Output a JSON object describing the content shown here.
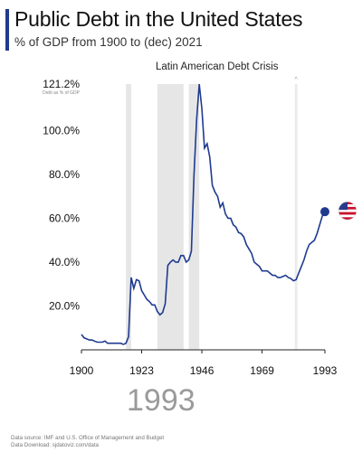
{
  "header": {
    "title": "Public Debt in the United States",
    "subtitle": "% of GDP from 1900 to (dec) 2021",
    "annotation": "Latin American Debt Crisis"
  },
  "current_year": "1993",
  "footer": {
    "source": "Data source: IMF and U.S. Office of Management and Budget",
    "download": "Data Download: sjdatoviz.com/data"
  },
  "colors": {
    "line": "#1f3b8f",
    "shade": "#e6e6e6",
    "accent": "#1f3b8f"
  },
  "flag_icon": "us-flag-icon",
  "chart_data": {
    "type": "line",
    "title": "Public Debt in the United States",
    "subtitle": "% of GDP from 1900 to (dec) 2021",
    "xlabel": "",
    "ylabel": "",
    "axis_note": "Debt as % of GDP",
    "xlim": [
      1900,
      1993
    ],
    "ylim": [
      0,
      121.2
    ],
    "x_ticks": [
      1900,
      1923,
      1946,
      1969,
      1993
    ],
    "x_tick_labels": [
      "1900",
      "1923",
      "1946",
      "1969",
      "1993"
    ],
    "y_ticks": [
      20,
      40,
      60,
      80,
      100
    ],
    "y_tick_labels": [
      "20.0%",
      "40.0%",
      "60.0%",
      "80.0%",
      "100.0%"
    ],
    "y_max_label": "121.2%",
    "grid": false,
    "shaded_periods": [
      [
        1917,
        1919
      ],
      [
        1929,
        1939
      ],
      [
        1941,
        1945
      ]
    ],
    "vertical_markers": [
      1982
    ],
    "annotations": [
      {
        "text": "Latin American Debt Crisis",
        "x": 1982
      }
    ],
    "series": [
      {
        "x": [
          1900,
          1901,
          1902,
          1903,
          1904,
          1905,
          1906,
          1907,
          1908,
          1909,
          1910,
          1911,
          1912,
          1913,
          1914,
          1915,
          1916,
          1917,
          1918,
          1919,
          1920,
          1921,
          1922,
          1923,
          1924,
          1925,
          1926,
          1927,
          1928,
          1929,
          1930,
          1931,
          1932,
          1933,
          1934,
          1935,
          1936,
          1937,
          1938,
          1939,
          1940,
          1941,
          1942,
          1943,
          1944,
          1945,
          1946,
          1947,
          1948,
          1949,
          1950,
          1951,
          1952,
          1953,
          1954,
          1955,
          1956,
          1957,
          1958,
          1959,
          1960,
          1961,
          1962,
          1963,
          1964,
          1965,
          1966,
          1967,
          1968,
          1969,
          1970,
          1971,
          1972,
          1973,
          1974,
          1975,
          1976,
          1977,
          1978,
          1979,
          1980,
          1981,
          1982,
          1983,
          1984,
          1985,
          1986,
          1987,
          1988,
          1989,
          1990,
          1991,
          1992,
          1993
        ],
        "values": [
          7,
          5.5,
          5,
          4.5,
          4.5,
          4,
          3.5,
          3.5,
          3.5,
          4,
          3,
          3,
          3,
          3,
          3,
          3,
          2.5,
          3,
          6,
          33,
          28,
          32,
          31.5,
          27,
          25,
          23,
          22,
          20.5,
          20.5,
          17.5,
          16,
          17,
          21,
          38.5,
          40,
          41,
          40,
          40,
          43,
          43,
          40,
          41,
          45,
          80,
          105,
          121.2,
          110,
          92,
          94,
          88,
          75,
          72,
          70,
          65,
          67,
          62,
          60,
          60,
          57,
          56,
          53.5,
          53,
          51.5,
          48,
          46,
          44,
          40,
          39,
          38,
          36,
          36,
          36,
          35,
          34,
          34,
          33,
          33,
          33.5,
          34,
          33,
          32.5,
          31.5,
          32,
          35,
          38,
          41,
          45,
          48,
          49,
          50,
          53,
          57,
          61,
          63
        ]
      }
    ]
  }
}
